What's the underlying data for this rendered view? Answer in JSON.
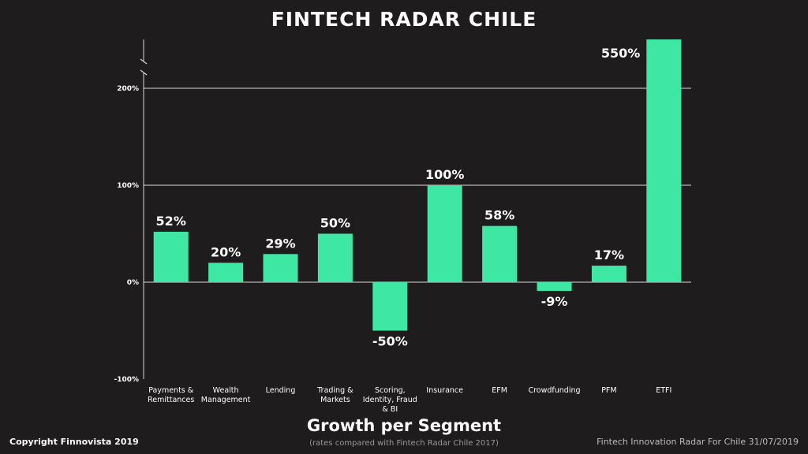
{
  "title": "FINTECH RADAR CHILE",
  "subtitle": "Growth per Segment",
  "note": "(rates compared with Fintech Radar Chile 2017)",
  "copyright": "Copyright Finnovista 2019",
  "footer_right": "Fintech Innovation Radar For Chile 31/07/2019",
  "colors": {
    "bar": "#3ee8a4",
    "background": "#1e1c1d",
    "grid": "#d9d9d9",
    "text": "#ffffff"
  },
  "chart_data": {
    "type": "bar",
    "categories": [
      [
        "Payments &",
        "Remittances"
      ],
      [
        "Wealth",
        "Management"
      ],
      [
        "Lending"
      ],
      [
        "Trading &",
        "Markets"
      ],
      [
        "Scoring,",
        "Identity, Fraud",
        "& BI"
      ],
      [
        "Insurance"
      ],
      [
        "EFM"
      ],
      [
        "Crowdfunding"
      ],
      [
        "PFM"
      ],
      [
        "ETFI"
      ]
    ],
    "values": [
      52,
      20,
      29,
      50,
      -50,
      100,
      58,
      -9,
      17,
      550
    ],
    "value_labels": [
      "52%",
      "20%",
      "29%",
      "50%",
      "-50%",
      "100%",
      "58%",
      "-9%",
      "17%",
      "550%"
    ],
    "yticks": [
      -100,
      0,
      100,
      200
    ],
    "ytick_labels": [
      "-100%",
      "0%",
      "100%",
      "200%"
    ],
    "ylim": [
      -100,
      250
    ],
    "axis_break": true,
    "grid": true
  }
}
